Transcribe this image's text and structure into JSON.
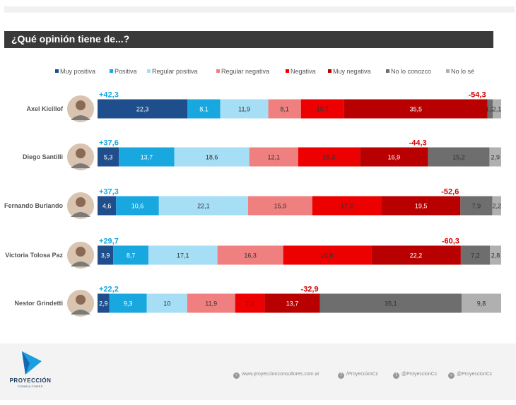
{
  "header": {
    "title": "¿Qué opinión tiene de...?"
  },
  "legend": [
    {
      "label": "Muy positiva",
      "color": "#1f4e8c"
    },
    {
      "label": "Positiva",
      "color": "#19a7e0"
    },
    {
      "label": "Regular positiva",
      "color": "#a6def5"
    },
    {
      "label": "Regular negativa",
      "color": "#f08080"
    },
    {
      "label": "Negativa",
      "color": "#ec0000"
    },
    {
      "label": "Muy negativa",
      "color": "#b80000"
    },
    {
      "label": "No lo conozco",
      "color": "#6e6e6e"
    },
    {
      "label": "No lo sé",
      "color": "#b0b0b0"
    }
  ],
  "chart_data": {
    "type": "bar",
    "orientation": "horizontal-stacked-100",
    "title": "¿Qué opinión tiene de...?",
    "categories": [
      "Axel Kicillof",
      "Diego Santilli",
      "Fernando Burlando",
      "Victoria Tolosa Paz",
      "Nestor Grindetti"
    ],
    "series": [
      {
        "name": "Muy positiva",
        "values": [
          22.3,
          5.3,
          4.6,
          3.9,
          2.9
        ]
      },
      {
        "name": "Positiva",
        "values": [
          8.1,
          13.7,
          10.6,
          8.7,
          9.3
        ]
      },
      {
        "name": "Regular positiva",
        "values": [
          11.9,
          18.6,
          22.1,
          17.1,
          10
        ]
      },
      {
        "name": "Regular negativa",
        "values": [
          8.1,
          12.1,
          15.9,
          16.3,
          11.9
        ]
      },
      {
        "name": "Negativa",
        "values": [
          10.7,
          15.3,
          17.2,
          21.8,
          7.3
        ]
      },
      {
        "name": "Muy negativa",
        "values": [
          35.5,
          16.9,
          19.5,
          22.2,
          13.7
        ]
      },
      {
        "name": "No lo conozco",
        "values": [
          1.3,
          15.2,
          7.9,
          7.2,
          35.1
        ]
      },
      {
        "name": "No lo sé",
        "values": [
          2.1,
          2.9,
          2.2,
          2.8,
          9.8
        ]
      }
    ],
    "positive_totals": [
      "+42,3",
      "+37,6",
      "+37,3",
      "+29,7",
      "+22,2"
    ],
    "negative_totals": [
      "-54,3",
      "-44,3",
      "-52,6",
      "-60,3",
      "-32,9"
    ],
    "xlim": [
      0,
      100
    ],
    "legend_position": "top"
  },
  "footer": {
    "brand": "PROYECCIÓN",
    "brand_sub": "CONSULTORES",
    "links": [
      "www.proyeccionconsultores.com.ar",
      "/ProyeccionCc",
      "@ProyeccionCc",
      "@ProyeccionCc"
    ]
  }
}
